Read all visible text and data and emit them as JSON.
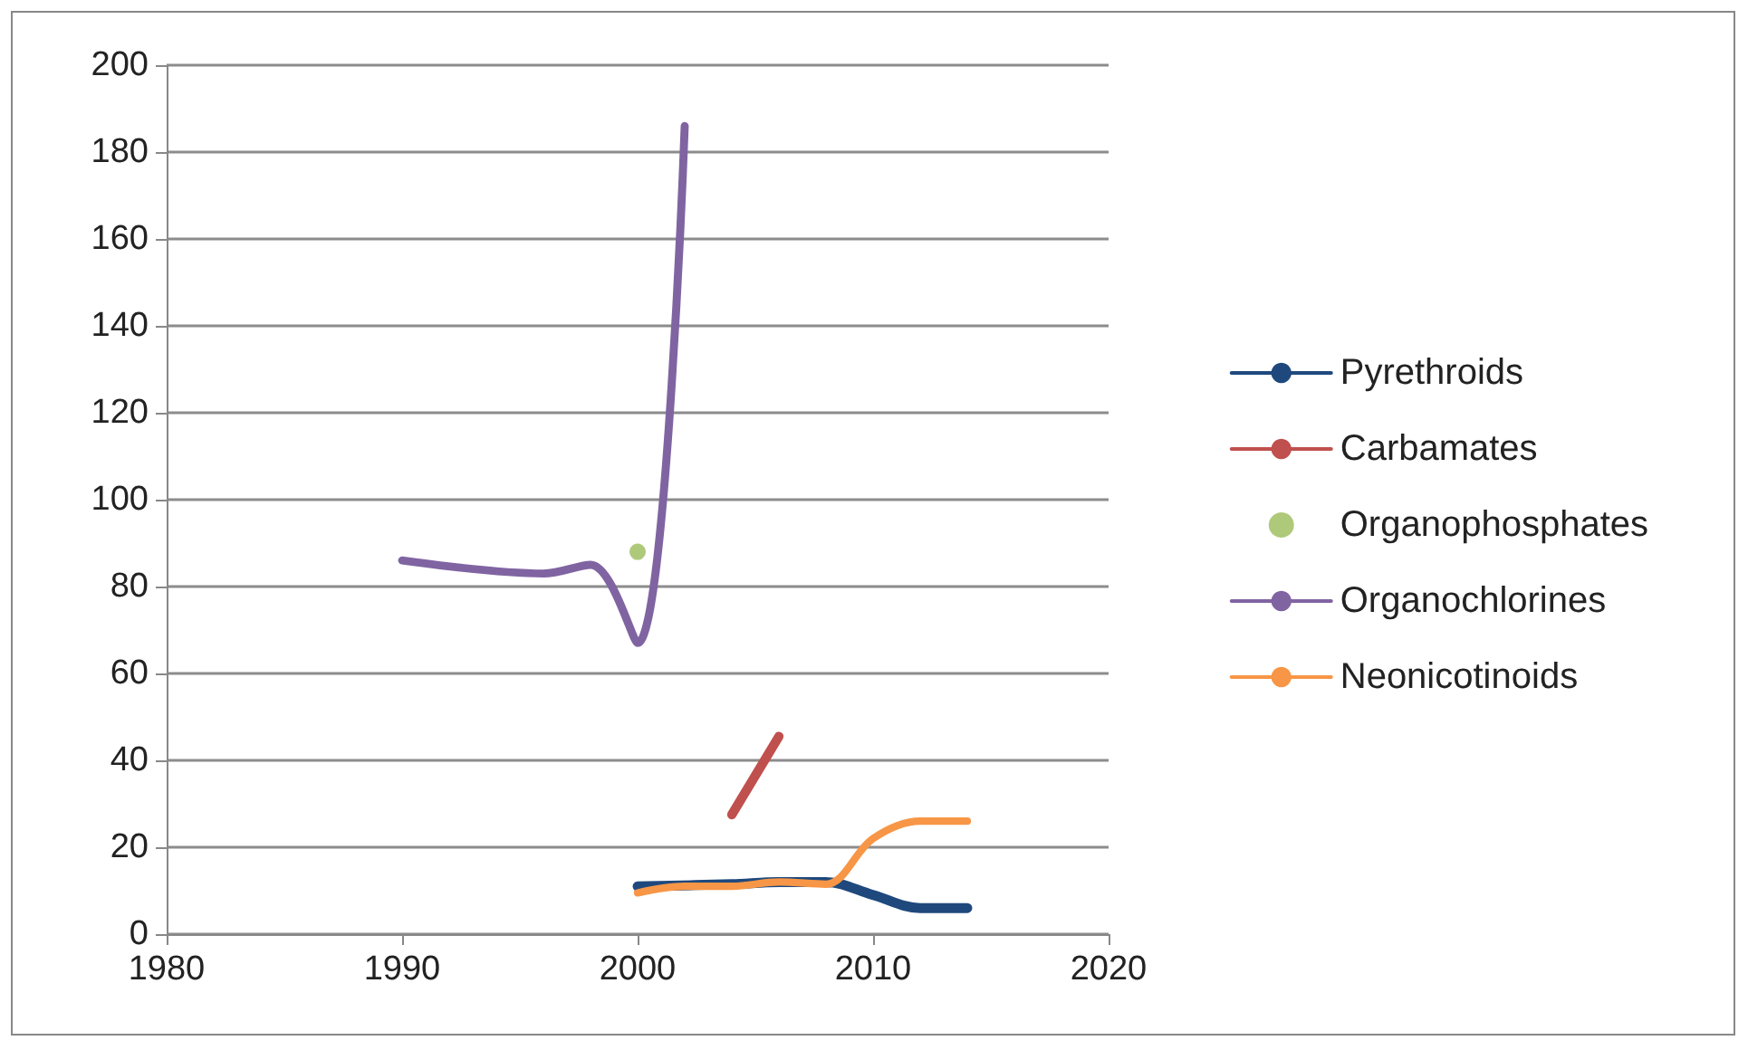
{
  "chart_data": {
    "type": "line",
    "xlim": [
      1980,
      2020
    ],
    "xticks": [
      1980,
      1990,
      2000,
      2010,
      2020
    ],
    "ylim": [
      0,
      200
    ],
    "yticks": [
      0,
      20,
      40,
      60,
      80,
      100,
      120,
      140,
      160,
      180,
      200
    ],
    "grid": "y",
    "legend": "right",
    "marker": "none",
    "line_style": "solid",
    "series": [
      {
        "name": "Pyrethroids",
        "color": "#1f497d",
        "x": [
          2000,
          2004,
          2006,
          2008,
          2010,
          2012,
          2014
        ],
        "values": [
          11,
          11.5,
          12,
          12,
          9,
          6,
          6
        ]
      },
      {
        "name": "Carbamates",
        "color": "#c0504d",
        "x": [
          2004,
          2006
        ],
        "values": [
          27.5,
          45.5
        ]
      },
      {
        "name": "Organophosphates",
        "type": "scatter",
        "marker": "circle",
        "color": "#9bbb59",
        "x": [
          2000
        ],
        "values": [
          88
        ]
      },
      {
        "name": "Organochlorines",
        "color": "#8064a2",
        "x": [
          1990,
          1996,
          1998,
          2000,
          2002
        ],
        "values": [
          86,
          83,
          85,
          67,
          186
        ]
      },
      {
        "name": "Neonicotinoids",
        "color": "#f79646",
        "x": [
          2000,
          2002,
          2004,
          2006,
          2008,
          2010,
          2012,
          2014
        ],
        "values": [
          9.5,
          11,
          11,
          12,
          11.5,
          22,
          26,
          26
        ]
      }
    ]
  }
}
